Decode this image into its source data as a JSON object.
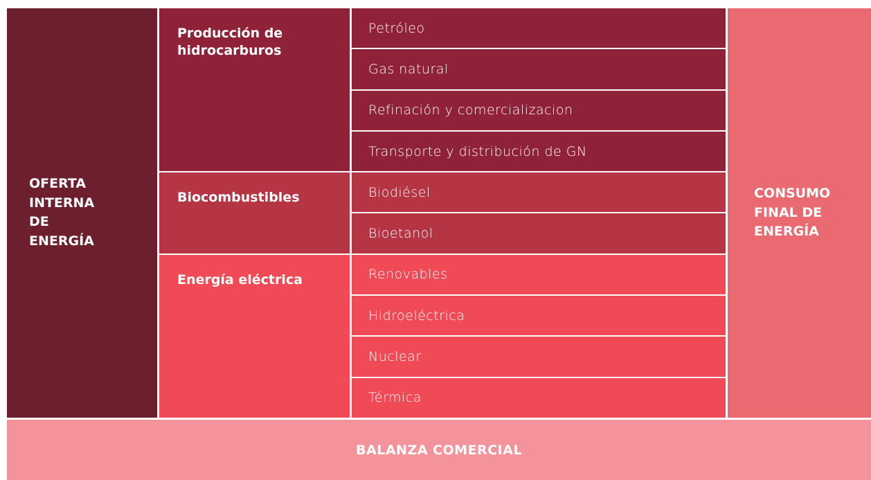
{
  "left_label": "OFERTA INTERNA DE ENERGÍA",
  "groups": [
    {
      "title": "Producción de hidrocarburos",
      "items": [
        "Petróleo",
        "Gas natural",
        "Refinación y comercializacion",
        "Transporte y distribución de GN"
      ]
    },
    {
      "title": "Biocombustibles",
      "items": [
        "Biodiésel",
        "Bioetanol"
      ]
    },
    {
      "title": "Energía eléctrica",
      "items": [
        "Renovables",
        "Hidroeléctrica",
        "Nuclear",
        "Térmica"
      ]
    }
  ],
  "right_label": "CONSUMO FINAL DE ENERGÍA",
  "bottom_label": "BALANZA COMERCIAL"
}
